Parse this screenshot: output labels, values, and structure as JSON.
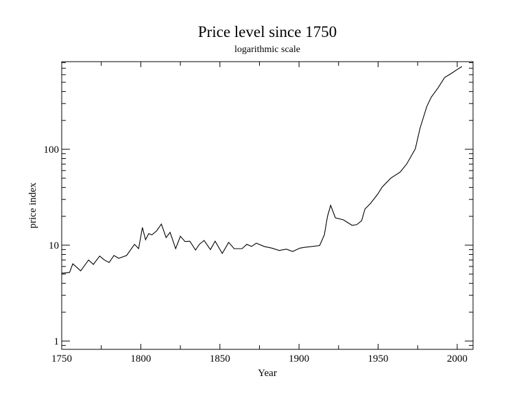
{
  "chart_data": {
    "type": "line",
    "title": "Price level since 1750",
    "subtitle": "logarithmic scale",
    "xlabel": "Year",
    "ylabel": "price index",
    "yscale": "log",
    "xlim": [
      1750,
      2010
    ],
    "ylim": [
      0.82,
      820
    ],
    "x_ticks": [
      1750,
      1800,
      1850,
      1900,
      1950,
      2000
    ],
    "x_tick_labels": [
      "1750",
      "1800",
      "1850",
      "1900",
      "1950",
      "2000"
    ],
    "y_ticks": [
      1,
      10,
      100
    ],
    "y_tick_labels": [
      "1",
      "10",
      "100"
    ],
    "grid": false,
    "line_color": "#000000",
    "series": [
      {
        "x": [
          1750,
          1755,
          1757,
          1762,
          1767,
          1770,
          1774,
          1777,
          1780,
          1783,
          1786,
          1791,
          1796,
          1798.6,
          1801,
          1803,
          1805,
          1807,
          1810,
          1813,
          1816,
          1818.5,
          1822,
          1825,
          1828,
          1831,
          1834.6,
          1837,
          1840,
          1844,
          1847,
          1851.5,
          1855.5,
          1859,
          1864,
          1867,
          1870,
          1873,
          1878,
          1883,
          1887.5,
          1892,
          1896,
          1900.5,
          1903.6,
          1913,
          1916,
          1918,
          1920,
          1923,
          1928,
          1933.6,
          1936.5,
          1939.6,
          1941.7,
          1945,
          1949.6,
          1952.6,
          1958,
          1964,
          1968,
          1973.5,
          1976.5,
          1980.8,
          1983.6,
          1988,
          1992,
          1996.4,
          2000,
          2003
        ],
        "y": [
          5.1,
          5.2,
          6.4,
          5.4,
          7.0,
          6.3,
          7.7,
          7.0,
          6.6,
          7.8,
          7.3,
          7.8,
          10.2,
          9.2,
          15.3,
          11.4,
          13.2,
          12.8,
          14.1,
          16.6,
          12.0,
          13.6,
          9.2,
          12.4,
          10.9,
          11.0,
          8.9,
          10.2,
          11.2,
          9.0,
          11.0,
          8.2,
          10.7,
          9.2,
          9.2,
          10.2,
          9.7,
          10.5,
          9.7,
          9.3,
          8.8,
          9.1,
          8.6,
          9.3,
          9.5,
          9.9,
          12.8,
          20,
          26,
          19.3,
          18.4,
          16.1,
          16.4,
          18,
          23.9,
          27,
          33.8,
          40.4,
          50,
          58,
          70,
          101,
          166,
          280,
          350,
          440,
          560,
          620,
          680,
          730
        ]
      }
    ]
  }
}
